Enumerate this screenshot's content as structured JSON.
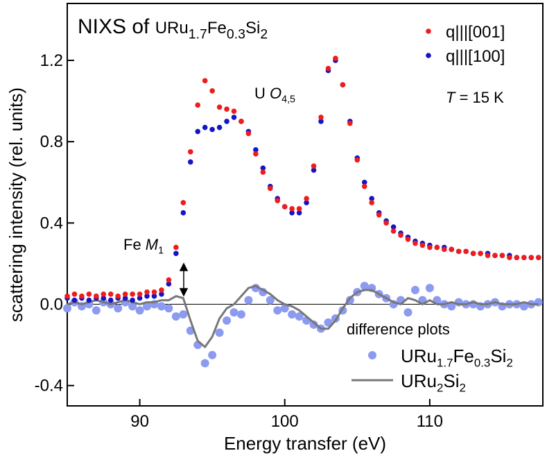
{
  "chart_data": {
    "type": "scatter",
    "title": [
      {
        "text": "NIXS of "
      },
      {
        "small": "URu"
      },
      {
        "sub": "1.7"
      },
      {
        "small": "Fe"
      },
      {
        "sub": "0.3"
      },
      {
        "small": "Si"
      },
      {
        "sub": "2"
      }
    ],
    "xlabel": "Energy transfer (eV)",
    "ylabel": "scattering intensity (rel. units)",
    "annotations": [
      [
        {
          "text": "U "
        },
        {
          "italic": "O"
        },
        {
          "sub": "4,5"
        }
      ],
      [
        {
          "text": "Fe "
        },
        {
          "italic": "M"
        },
        {
          "sub": "1"
        }
      ],
      [
        {
          "italic": "T"
        },
        {
          "text": " = 15 K"
        }
      ],
      [
        {
          "text": "difference plots"
        }
      ]
    ],
    "xlim": [
      85,
      117.8
    ],
    "ylim": [
      -0.5,
      1.48
    ],
    "xticks": [
      90,
      100,
      110
    ],
    "yticks": [
      -0.4,
      {
        "value": 0,
        "label": "0.0"
      },
      0.4,
      0.8,
      1.2
    ],
    "hline": 0,
    "x": [
      85,
      85.5,
      86,
      86.5,
      87,
      87.5,
      88,
      88.5,
      89,
      89.5,
      90,
      90.5,
      91,
      91.5,
      92,
      92.5,
      93,
      93.5,
      94,
      94.5,
      95,
      95.5,
      96,
      96.5,
      97,
      97.5,
      98,
      98.5,
      99,
      99.5,
      100,
      100.5,
      101,
      101.5,
      102,
      102.5,
      103,
      103.5,
      104,
      104.5,
      105,
      105.5,
      106,
      106.5,
      107,
      107.5,
      108,
      108.5,
      109,
      109.5,
      110,
      110.5,
      111,
      111.5,
      112,
      112.5,
      113,
      113.5,
      114,
      114.5,
      115,
      115.5,
      116,
      116.5,
      117,
      117.5
    ],
    "series": [
      {
        "name": "q|||[100]",
        "color": "#1414c8",
        "kind": "dots",
        "values": [
          0.03,
          0.02,
          0.03,
          0.02,
          0.03,
          0.03,
          0.02,
          0.03,
          0.03,
          0.02,
          0.03,
          0.04,
          0.04,
          0.05,
          0.1,
          0.25,
          0.45,
          0.7,
          0.85,
          0.87,
          0.86,
          0.87,
          0.9,
          0.92,
          0.9,
          0.85,
          0.76,
          0.67,
          0.58,
          0.52,
          0.48,
          0.45,
          0.45,
          0.5,
          0.66,
          0.9,
          1.15,
          1.2,
          1.08,
          0.9,
          0.72,
          0.6,
          0.52,
          0.45,
          0.41,
          0.38,
          0.35,
          0.33,
          0.31,
          0.3,
          0.29,
          0.28,
          0.28,
          0.27,
          0.26,
          0.26,
          0.25,
          0.25,
          0.25,
          0.24,
          0.24,
          0.24,
          0.23,
          0.23,
          0.23,
          0.23
        ]
      },
      {
        "name": "q|||[001]",
        "color": "#ee1c1c",
        "kind": "dots",
        "values": [
          0.04,
          0.05,
          0.04,
          0.05,
          0.04,
          0.05,
          0.05,
          0.04,
          0.05,
          0.05,
          0.05,
          0.06,
          0.06,
          0.07,
          0.12,
          0.28,
          0.5,
          0.75,
          0.98,
          1.1,
          1.05,
          0.97,
          0.96,
          0.95,
          0.9,
          0.84,
          0.74,
          0.65,
          0.57,
          0.51,
          0.48,
          0.47,
          0.47,
          0.52,
          0.68,
          0.92,
          1.16,
          1.21,
          1.08,
          0.89,
          0.71,
          0.58,
          0.5,
          0.44,
          0.4,
          0.36,
          0.34,
          0.32,
          0.3,
          0.29,
          0.28,
          0.28,
          0.27,
          0.27,
          0.26,
          0.26,
          0.25,
          0.25,
          0.24,
          0.24,
          0.24,
          0.23,
          0.23,
          0.23,
          0.23,
          0.23
        ]
      },
      {
        "name": [
          {
            "text": "URu"
          },
          {
            "sub": "1.7"
          },
          {
            "text": "Fe"
          },
          {
            "sub": "0.3"
          },
          {
            "text": "Si"
          },
          {
            "sub": "2"
          }
        ],
        "color": "#8c9af0",
        "kind": "big-dots",
        "values": [
          -0.02,
          0.01,
          -0.01,
          0.0,
          -0.03,
          0.01,
          0.0,
          -0.02,
          0.01,
          -0.01,
          -0.03,
          -0.01,
          0.0,
          -0.01,
          -0.02,
          -0.06,
          -0.05,
          -0.13,
          -0.2,
          -0.29,
          -0.25,
          -0.14,
          -0.08,
          -0.04,
          -0.05,
          0.02,
          0.08,
          0.06,
          0.02,
          -0.03,
          -0.02,
          -0.05,
          -0.06,
          -0.08,
          -0.1,
          -0.12,
          -0.09,
          -0.07,
          -0.03,
          0.02,
          0.06,
          0.09,
          0.08,
          0.05,
          0.03,
          0.0,
          0.02,
          -0.04,
          0.07,
          0.02,
          0.08,
          0.02,
          0.0,
          -0.01,
          0.01,
          0.0,
          0.0,
          -0.01,
          0.0,
          0.01,
          -0.01,
          0.0,
          0.0,
          -0.01,
          0.0,
          0.01
        ]
      },
      {
        "name": [
          {
            "text": "URu"
          },
          {
            "sub": "2"
          },
          {
            "text": "Si"
          },
          {
            "sub": "2"
          }
        ],
        "color": "#777777",
        "kind": "line",
        "values": [
          0.0,
          0.01,
          0.0,
          0.01,
          0.02,
          0.01,
          0.0,
          0.01,
          0.02,
          0.01,
          0.0,
          0.01,
          0.01,
          0.02,
          0.02,
          0.04,
          0.03,
          -0.08,
          -0.18,
          -0.21,
          -0.16,
          -0.07,
          -0.02,
          0.0,
          0.04,
          0.08,
          0.09,
          0.07,
          0.05,
          0.02,
          0.0,
          -0.01,
          -0.03,
          -0.06,
          -0.09,
          -0.12,
          -0.12,
          -0.08,
          -0.02,
          0.03,
          0.06,
          0.07,
          0.07,
          0.05,
          0.03,
          0.01,
          0.0,
          0.03,
          0.02,
          0.0,
          0.02,
          0.0,
          0.0,
          0.01,
          0.0,
          0.0,
          0.01,
          0.0,
          0.0,
          0.01,
          0.0,
          0.0,
          0.0,
          0.01,
          0.0,
          0.0
        ]
      }
    ]
  }
}
